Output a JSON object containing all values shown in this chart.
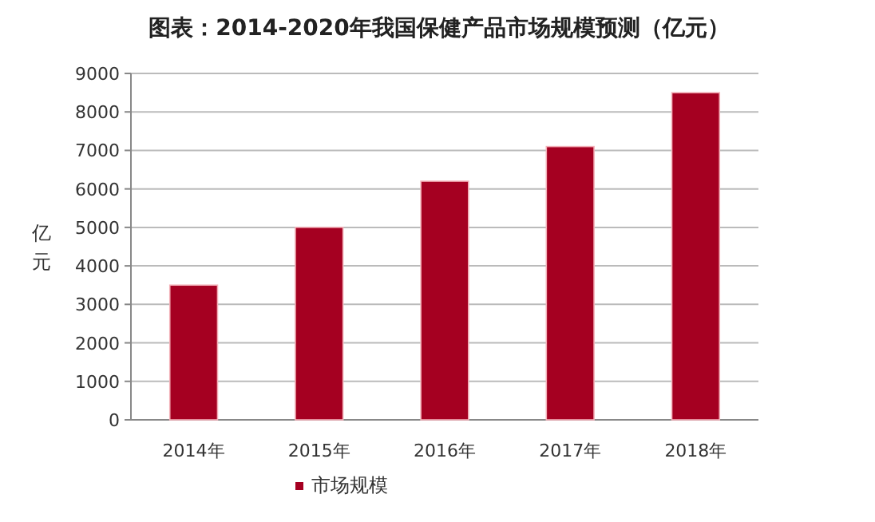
{
  "chart_data": {
    "type": "bar",
    "title": "图表：2014-2020年我国保健产品市场规模预测（亿元）",
    "ylabel": "亿元",
    "categories": [
      "2014年",
      "2015年",
      "2016年",
      "2017年",
      "2018年"
    ],
    "series": [
      {
        "name": "市场规模",
        "color": "#a50021",
        "values": [
          3500,
          5000,
          6200,
          7100,
          8500
        ]
      }
    ],
    "ylim": [
      0,
      9000
    ],
    "yticks": [
      0,
      1000,
      2000,
      3000,
      4000,
      5000,
      6000,
      7000,
      8000,
      9000
    ],
    "grid": "y",
    "legend": "bottom"
  }
}
